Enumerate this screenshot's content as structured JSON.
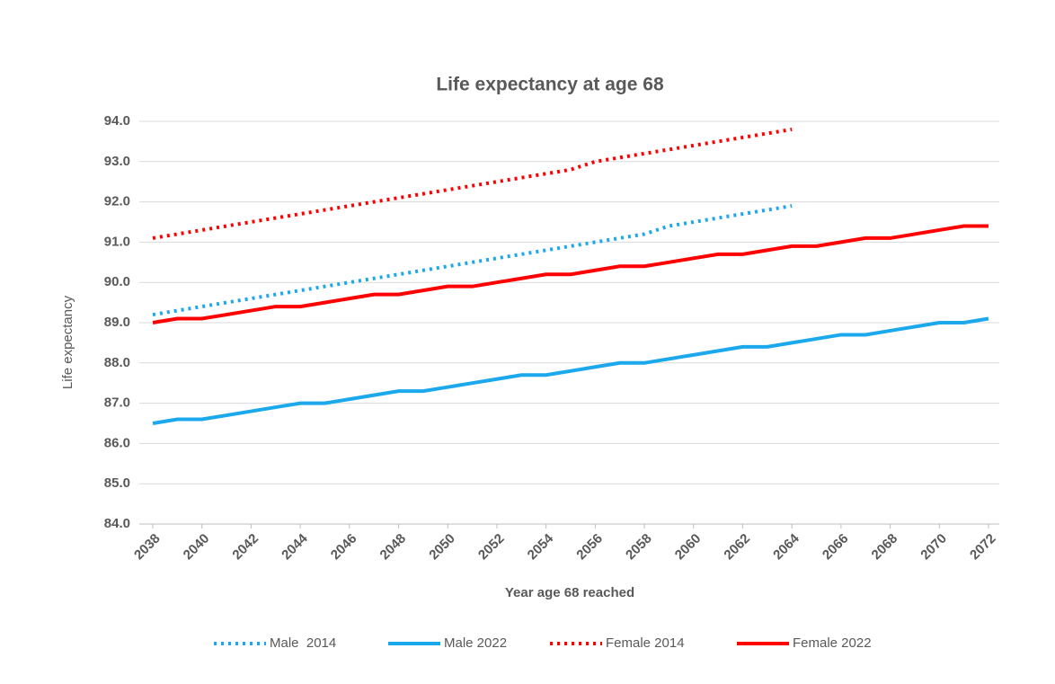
{
  "chart_data": {
    "type": "line",
    "title": "Life expectancy at age 68",
    "x_label": "Year age 68 reached",
    "y_label": "Life expectancy",
    "x": [
      2038,
      2039,
      2040,
      2041,
      2042,
      2043,
      2044,
      2045,
      2046,
      2047,
      2048,
      2049,
      2050,
      2051,
      2052,
      2053,
      2054,
      2055,
      2056,
      2057,
      2058,
      2059,
      2060,
      2061,
      2062,
      2063,
      2064,
      2065,
      2066,
      2067,
      2068,
      2069,
      2070,
      2071,
      2072
    ],
    "xlim": [
      2038,
      2072
    ],
    "xticks": [
      2038,
      2040,
      2042,
      2044,
      2046,
      2048,
      2050,
      2052,
      2054,
      2056,
      2058,
      2060,
      2062,
      2064,
      2066,
      2068,
      2070,
      2072
    ],
    "ylim": [
      84,
      94
    ],
    "yticks": [
      {
        "value": 84,
        "label": "84.0"
      },
      {
        "value": 85,
        "label": "85.0"
      },
      {
        "value": 86,
        "label": "86.0"
      },
      {
        "value": 87,
        "label": "87.0"
      },
      {
        "value": 88,
        "label": "88.0"
      },
      {
        "value": 89,
        "label": "89.0"
      },
      {
        "value": 90,
        "label": "90.0"
      },
      {
        "value": 91,
        "label": "91.0"
      },
      {
        "value": 92,
        "label": "92.0"
      },
      {
        "value": 93,
        "label": "93.0"
      },
      {
        "value": 94,
        "label": "94.0"
      }
    ],
    "grid": true,
    "legend": "bottom",
    "series": [
      {
        "name": "Male  2014",
        "color": "#1ca8ec",
        "style": "dotted",
        "values": [
          89.2,
          89.3,
          89.4,
          89.5,
          89.6,
          89.7,
          89.8,
          89.9,
          90.0,
          90.1,
          90.2,
          90.3,
          90.4,
          90.5,
          90.6,
          90.7,
          90.8,
          90.9,
          91.0,
          91.1,
          91.2,
          91.4,
          91.5,
          91.6,
          91.7,
          91.8,
          91.9,
          null,
          null,
          null,
          null,
          null,
          null,
          null,
          null
        ]
      },
      {
        "name": "Male 2022",
        "color": "#1ca8ec",
        "style": "solid",
        "values": [
          86.5,
          86.6,
          86.6,
          86.7,
          86.8,
          86.9,
          87.0,
          87.0,
          87.1,
          87.2,
          87.3,
          87.3,
          87.4,
          87.5,
          87.6,
          87.7,
          87.7,
          87.8,
          87.9,
          88.0,
          88.0,
          88.1,
          88.2,
          88.3,
          88.4,
          88.4,
          88.5,
          88.6,
          88.7,
          88.7,
          88.8,
          88.9,
          89.0,
          89.0,
          89.1
        ]
      },
      {
        "name": "Female 2014",
        "color": "#ff0000",
        "style": "dotted",
        "values": [
          91.1,
          91.2,
          91.3,
          91.4,
          91.5,
          91.6,
          91.7,
          91.8,
          91.9,
          92.0,
          92.1,
          92.2,
          92.3,
          92.4,
          92.5,
          92.6,
          92.7,
          92.8,
          93.0,
          93.1,
          93.2,
          93.3,
          93.4,
          93.5,
          93.6,
          93.7,
          93.8,
          null,
          null,
          null,
          null,
          null,
          null,
          null,
          null
        ]
      },
      {
        "name": "Female 2022",
        "color": "#ff0000",
        "style": "solid",
        "values": [
          89.0,
          89.1,
          89.1,
          89.2,
          89.3,
          89.4,
          89.4,
          89.5,
          89.6,
          89.7,
          89.7,
          89.8,
          89.9,
          89.9,
          90.0,
          90.1,
          90.2,
          90.2,
          90.3,
          90.4,
          90.4,
          90.5,
          90.6,
          90.7,
          90.7,
          90.8,
          90.9,
          90.9,
          91.0,
          91.1,
          91.1,
          91.2,
          91.3,
          91.4,
          91.4
        ]
      }
    ]
  }
}
